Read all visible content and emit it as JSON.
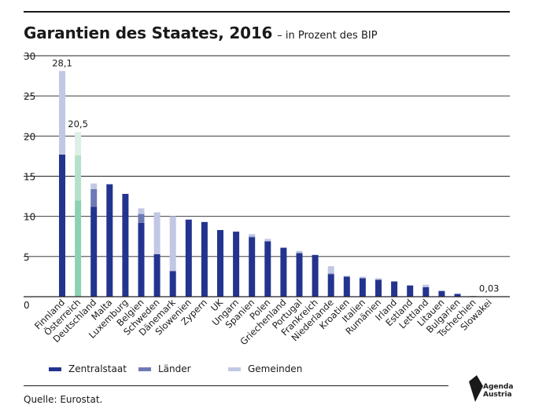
{
  "header": {
    "title": "Garantien des Staates, 2016",
    "subtitle": "– in Prozent des BIP"
  },
  "colors": {
    "zentralstaat": "#23348f",
    "laender": "#6e79b5",
    "gemeinden": "#c1c8e4",
    "oesterreich_zentralstaat": "#8dd1b3",
    "oesterreich_laender": "#b5e1cb",
    "oesterreich_gemeinden": "#dcf0e5",
    "grid": "#222222"
  },
  "legend": [
    {
      "label": "Zentralstaat",
      "color_key": "zentralstaat"
    },
    {
      "label": "Länder",
      "color_key": "laender"
    },
    {
      "label": "Gemeinden",
      "color_key": "gemeinden"
    }
  ],
  "source": "Quelle: Eurostat.",
  "logo": {
    "line1": "Agenda",
    "line2": "Austria"
  },
  "chart_data": {
    "type": "bar",
    "stacked": true,
    "ylim": [
      0,
      30
    ],
    "yticks": [
      0,
      5,
      10,
      15,
      20,
      25,
      30
    ],
    "grid": true,
    "legend_position": "bottom-left",
    "highlight_category": "Österreich",
    "categories": [
      "Finnland",
      "Österreich",
      "Deutschland",
      "Malta",
      "Luxemburg",
      "Belgien",
      "Schweden",
      "Dänemark",
      "Slowenien",
      "Zypern",
      "UK",
      "Ungarn",
      "Spanien",
      "Polen",
      "Griechenland",
      "Portugal",
      "Frankreich",
      "Niederlande",
      "Kroatien",
      "Italien",
      "Rumänien",
      "Irland",
      "Estland",
      "Lettland",
      "Litauen",
      "Bulgarien",
      "Tschechien",
      "Slowakei"
    ],
    "series": [
      {
        "name": "Zentralstaat",
        "values": [
          17.7,
          12.0,
          11.2,
          14.0,
          12.8,
          9.2,
          5.3,
          3.2,
          9.6,
          9.3,
          8.3,
          8.1,
          7.4,
          6.9,
          6.1,
          5.4,
          5.2,
          2.8,
          2.5,
          2.3,
          2.1,
          1.9,
          1.4,
          1.2,
          0.7,
          0.35,
          0.07,
          0.03
        ]
      },
      {
        "name": "Länder",
        "values": [
          0,
          5.6,
          2.2,
          0,
          0,
          1.1,
          0,
          0,
          0,
          0,
          0,
          0,
          0.1,
          0,
          0,
          0.1,
          0,
          0.1,
          0,
          0,
          0,
          0,
          0,
          0,
          0,
          0,
          0,
          0
        ]
      },
      {
        "name": "Gemeinden",
        "values": [
          10.4,
          2.9,
          0.7,
          0,
          0,
          0.7,
          5.2,
          6.8,
          0,
          0,
          0,
          0,
          0.3,
          0.3,
          0,
          0.2,
          0,
          0.9,
          0.1,
          0.2,
          0.2,
          0,
          0,
          0.3,
          0.1,
          0,
          0,
          0
        ]
      }
    ],
    "data_labels": [
      {
        "category": "Finnland",
        "text": "28,1"
      },
      {
        "category": "Österreich",
        "text": "20,5"
      },
      {
        "category": "Slowakei",
        "text": "0,03"
      }
    ]
  }
}
